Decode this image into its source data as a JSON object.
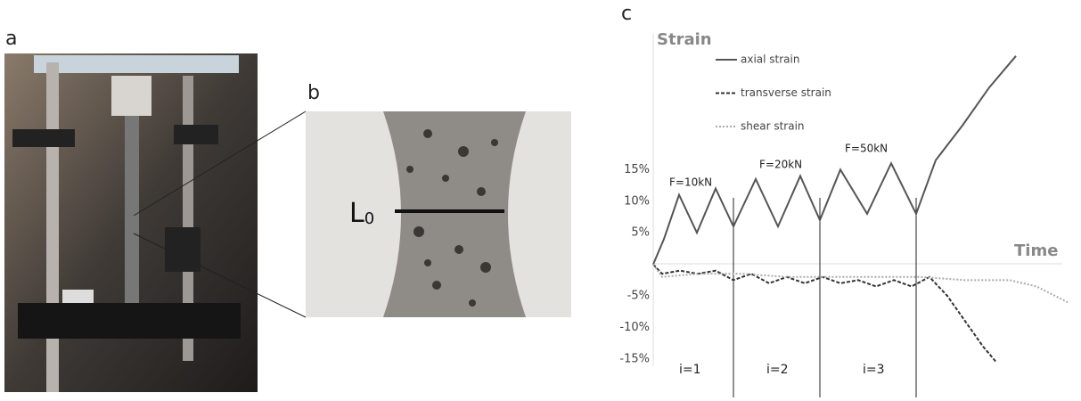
{
  "panel_labels": [
    "a",
    "b",
    "c"
  ],
  "specimen_label": {
    "main": "L",
    "sub": "0"
  },
  "chart_data": {
    "type": "line",
    "ylabel": "Strain",
    "xlabel": "Time",
    "xlim": [
      0,
      47
    ],
    "ylim": [
      -16,
      36.5
    ],
    "yticks": [
      {
        "value": 15,
        "label": "15%"
      },
      {
        "value": 10,
        "label": "10%"
      },
      {
        "value": 5,
        "label": "5%"
      },
      {
        "value": -5,
        "label": "-5%"
      },
      {
        "value": -10,
        "label": "-10%"
      },
      {
        "value": -15,
        "label": "-15%"
      }
    ],
    "annotations": [
      "F=10kN",
      "F=20kN",
      "F=50kN",
      "i=1",
      "i=2",
      "i=3"
    ],
    "series": [
      {
        "name": "axial strain",
        "color": "#555555",
        "dash": "none",
        "x": [
          0,
          1.2,
          2.9,
          4.9,
          7,
          9,
          11.5,
          14,
          16.5,
          18.7,
          21,
          24,
          26.7,
          29.5,
          31.7,
          34.7,
          37.7,
          40.7
        ],
        "values": [
          0,
          4,
          11,
          5,
          12,
          6,
          13.5,
          6,
          14,
          7,
          15,
          8,
          16,
          8,
          16.5,
          22,
          28,
          33
        ]
      },
      {
        "name": "transverse strain",
        "color": "#333333",
        "dash": "4 2",
        "x": [
          0,
          1,
          3,
          5,
          7,
          9,
          11,
          13,
          15,
          17,
          19,
          21,
          23,
          25,
          27,
          29,
          31,
          33,
          35,
          37,
          38.5
        ],
        "values": [
          0,
          -1.5,
          -1,
          -1.5,
          -1,
          -2.5,
          -1.5,
          -3,
          -2,
          -3,
          -2,
          -3,
          -2.5,
          -3.5,
          -2.5,
          -3.5,
          -2,
          -5,
          -9,
          -13,
          -15.5
        ]
      },
      {
        "name": "shear strain",
        "color": "#aaaaaa",
        "dash": "2 2",
        "x": [
          0,
          1,
          5,
          10,
          15,
          20,
          25,
          30,
          35,
          40,
          43,
          46.5
        ],
        "values": [
          0,
          -2,
          -1.5,
          -1.5,
          -2,
          -2,
          -2,
          -2,
          -2.5,
          -2.5,
          -3.5,
          -6
        ]
      }
    ]
  }
}
